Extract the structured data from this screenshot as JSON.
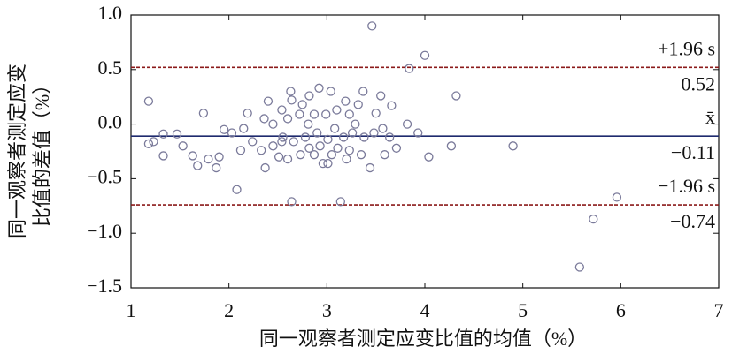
{
  "chart_data": {
    "type": "scatter",
    "xlabel": "同一观察者测定应变比值的均值（%）",
    "ylabel": [
      "同一观察者测定应变",
      "比值的差值（%）"
    ],
    "xlim": [
      1,
      7
    ],
    "xticks": [
      1,
      2,
      3,
      4,
      5,
      6,
      7
    ],
    "ylim": [
      -1.5,
      1.0
    ],
    "yticks": [
      {
        "value": -1.5,
        "label": "−1.5"
      },
      {
        "value": -1.0,
        "label": "−1.0"
      },
      {
        "value": -0.5,
        "label": "−0.5"
      },
      {
        "value": 0.0,
        "label": "0.0"
      },
      {
        "value": 0.5,
        "label": "0.5"
      },
      {
        "value": 1.0,
        "label": "1.0"
      }
    ],
    "series": [
      {
        "color": "#7a7a9a",
        "x": [
          1.18,
          1.18,
          1.23,
          1.33,
          1.33,
          1.47,
          1.53,
          1.63,
          1.68,
          1.74,
          1.79,
          1.9,
          1.95,
          2.08,
          2.12,
          2.15,
          2.19,
          2.24,
          2.33,
          2.36,
          2.37,
          2.4,
          2.45,
          2.45,
          2.51,
          2.54,
          2.55,
          2.6,
          2.6,
          2.63,
          2.64,
          2.64,
          2.66,
          2.72,
          2.73,
          2.75,
          2.78,
          2.81,
          2.82,
          2.82,
          2.87,
          2.9,
          2.92,
          2.93,
          2.96,
          2.99,
          3.01,
          3.04,
          3.05,
          3.08,
          3.1,
          3.11,
          3.14,
          3.17,
          3.19,
          3.2,
          3.23,
          3.26,
          3.29,
          3.32,
          3.35,
          3.37,
          3.38,
          3.44,
          3.46,
          3.48,
          3.5,
          3.55,
          3.57,
          3.59,
          3.64,
          3.66,
          3.71,
          3.82,
          3.84,
          3.93,
          4.0,
          4.04,
          4.27,
          4.32,
          4.9,
          5.58,
          5.72,
          5.96,
          2.87,
          2.54,
          2.03,
          1.87,
          3.23,
          3.01
        ],
        "values": [
          0.21,
          -0.18,
          -0.16,
          -0.09,
          -0.29,
          -0.09,
          -0.2,
          -0.29,
          -0.38,
          0.1,
          -0.32,
          -0.3,
          -0.05,
          -0.6,
          -0.24,
          -0.04,
          0.1,
          -0.16,
          -0.24,
          0.05,
          -0.4,
          0.21,
          -0.2,
          0.0,
          -0.3,
          0.13,
          -0.12,
          -0.32,
          0.05,
          0.3,
          -0.71,
          0.22,
          -0.16,
          0.09,
          -0.28,
          0.18,
          -0.12,
          0.0,
          0.26,
          -0.22,
          0.09,
          -0.08,
          0.33,
          -0.2,
          -0.36,
          0.09,
          -0.14,
          0.3,
          -0.28,
          -0.04,
          0.13,
          -0.22,
          -0.71,
          -0.12,
          0.21,
          -0.32,
          0.09,
          -0.08,
          0.0,
          0.18,
          -0.28,
          0.3,
          -0.12,
          -0.4,
          0.9,
          -0.08,
          0.1,
          0.26,
          -0.04,
          -0.28,
          -0.12,
          0.17,
          -0.22,
          0.0,
          0.51,
          -0.08,
          0.63,
          -0.3,
          -0.2,
          0.26,
          -0.2,
          -1.31,
          -0.87,
          -0.67,
          -0.28,
          -0.16,
          -0.08,
          -0.4,
          -0.24,
          -0.36
        ]
      }
    ],
    "reference_lines": [
      {
        "label": "+1.96 s",
        "value": 0.52,
        "value_label": "0.52",
        "color": "#8b1a1a",
        "style": "dashed"
      },
      {
        "label": "x̄",
        "value": -0.11,
        "value_label": "−0.11",
        "color": "#1f2a6e",
        "style": "solid"
      },
      {
        "label": "−1.96 s",
        "value": -0.74,
        "value_label": "−0.74",
        "color": "#8b1a1a",
        "style": "dashed"
      }
    ]
  }
}
